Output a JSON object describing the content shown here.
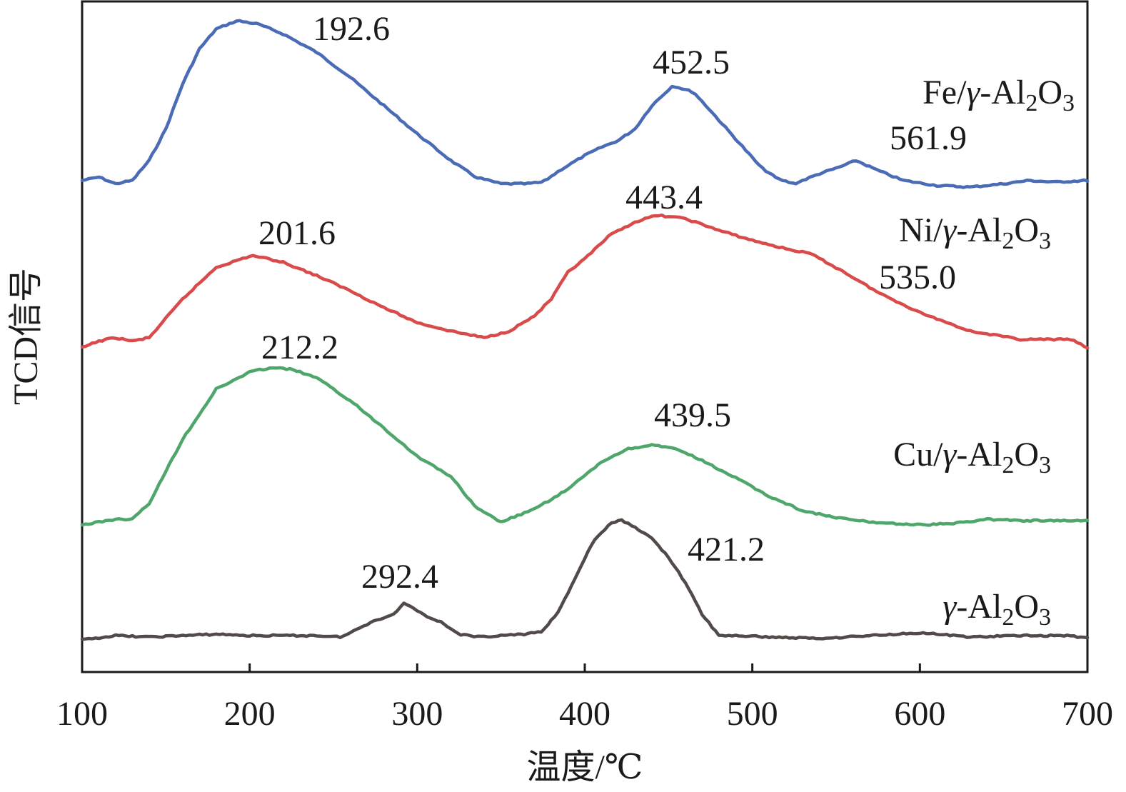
{
  "chart_data": {
    "type": "line",
    "xlabel": "温度/℃",
    "ylabel": "TCD信号",
    "xlim": [
      100,
      700
    ],
    "xticks": [
      100,
      200,
      300,
      400,
      500,
      600,
      700
    ],
    "yticks_shown": false,
    "grid": false,
    "legend": "inline labels at right of each curve",
    "series": [
      {
        "name": "Fe/γ-Al2O3",
        "label_parts": [
          "Fe/",
          "γ",
          "-Al",
          "2",
          "O",
          "3"
        ],
        "color": "#4a6bb5",
        "offset": 3,
        "x": [
          100,
          110,
          120,
          130,
          140,
          150,
          160,
          170,
          180,
          192.6,
          205,
          220,
          240,
          260,
          280,
          300,
          320,
          335,
          350,
          365,
          375,
          385,
          400,
          410,
          420,
          430,
          440,
          452.5,
          465,
          475,
          490,
          505,
          515,
          525,
          540,
          552,
          561.9,
          575,
          590,
          610,
          630,
          650,
          665,
          680,
          700
        ],
        "y": [
          0.04,
          0.06,
          0.02,
          0.04,
          0.16,
          0.35,
          0.62,
          0.83,
          0.95,
          1.0,
          0.98,
          0.92,
          0.81,
          0.66,
          0.49,
          0.32,
          0.16,
          0.06,
          0.02,
          0.02,
          0.03,
          0.1,
          0.19,
          0.24,
          0.28,
          0.35,
          0.49,
          0.61,
          0.57,
          0.46,
          0.29,
          0.12,
          0.05,
          0.02,
          0.08,
          0.12,
          0.16,
          0.1,
          0.04,
          0.01,
          0.0,
          0.02,
          0.04,
          0.03,
          0.04
        ]
      },
      {
        "name": "Ni/γ-Al2O3",
        "label_parts": [
          "Ni/",
          "γ",
          "-Al",
          "2",
          "O",
          "3"
        ],
        "color": "#d94a4a",
        "offset": 2,
        "x": [
          100,
          110,
          120,
          130,
          140,
          160,
          180,
          201.6,
          220,
          240,
          260,
          280,
          300,
          320,
          340,
          355,
          370,
          380,
          390,
          400,
          415,
          430,
          443.4,
          460,
          480,
          500,
          520,
          535.0,
          555,
          575,
          600,
          630,
          660,
          690,
          700
        ],
        "y": [
          0.0,
          0.04,
          0.06,
          0.04,
          0.06,
          0.29,
          0.48,
          0.55,
          0.51,
          0.43,
          0.34,
          0.24,
          0.15,
          0.1,
          0.06,
          0.1,
          0.19,
          0.29,
          0.45,
          0.53,
          0.67,
          0.75,
          0.79,
          0.77,
          0.7,
          0.64,
          0.59,
          0.56,
          0.45,
          0.33,
          0.21,
          0.1,
          0.05,
          0.05,
          0.0
        ]
      },
      {
        "name": "Cu/γ-Al2O3",
        "label_parts": [
          "Cu/",
          "γ",
          "-Al",
          "2",
          "O",
          "3"
        ],
        "color": "#4ea66a",
        "offset": 1,
        "x": [
          100,
          110,
          120,
          130,
          140,
          160,
          180,
          200,
          212.2,
          225,
          240,
          260,
          280,
          300,
          320,
          335,
          350,
          370,
          390,
          410,
          425,
          439.5,
          455,
          470,
          490,
          510,
          530,
          550,
          570,
          600,
          620,
          640,
          660,
          680,
          700
        ],
        "y": [
          0.0,
          0.02,
          0.04,
          0.04,
          0.15,
          0.6,
          0.95,
          1.07,
          1.1,
          1.09,
          1.03,
          0.87,
          0.68,
          0.48,
          0.34,
          0.12,
          0.02,
          0.11,
          0.25,
          0.44,
          0.53,
          0.56,
          0.53,
          0.45,
          0.33,
          0.2,
          0.1,
          0.05,
          0.02,
          0.0,
          0.01,
          0.04,
          0.03,
          0.03,
          0.03
        ]
      },
      {
        "name": "γ-Al2O3",
        "label_parts": [
          "",
          "γ",
          "-Al",
          "2",
          "O",
          "3"
        ],
        "color": "#524a48",
        "offset": 0,
        "x": [
          100,
          120,
          140,
          160,
          180,
          200,
          220,
          240,
          255,
          265,
          275,
          285,
          292.4,
          305,
          315,
          325,
          335,
          350,
          365,
          375,
          385,
          395,
          405,
          415,
          421.2,
          430,
          440,
          450,
          460,
          470,
          480,
          490,
          510,
          540,
          570,
          600,
          630,
          660,
          690,
          700
        ],
        "y": [
          0.0,
          0.03,
          0.02,
          0.03,
          0.04,
          0.03,
          0.03,
          0.03,
          0.02,
          0.08,
          0.14,
          0.17,
          0.26,
          0.17,
          0.12,
          0.04,
          0.02,
          0.03,
          0.04,
          0.06,
          0.21,
          0.45,
          0.69,
          0.81,
          0.84,
          0.79,
          0.71,
          0.58,
          0.4,
          0.18,
          0.03,
          0.03,
          0.02,
          0.01,
          0.03,
          0.05,
          0.02,
          0.03,
          0.03,
          0.01
        ]
      }
    ],
    "annotations": [
      {
        "text": "192.6",
        "series": 0,
        "x": 192.6,
        "anchor": "right"
      },
      {
        "text": "452.5",
        "series": 0,
        "x": 452.5,
        "anchor": "above"
      },
      {
        "text": "561.9",
        "series": 0,
        "x": 561.9,
        "anchor": "above"
      },
      {
        "text": "201.6",
        "series": 1,
        "x": 201.6,
        "anchor": "above"
      },
      {
        "text": "443.4",
        "series": 1,
        "x": 443.4,
        "anchor": "above"
      },
      {
        "text": "535.0",
        "series": 1,
        "x": 535.0,
        "anchor": "below"
      },
      {
        "text": "212.2",
        "series": 2,
        "x": 212.2,
        "anchor": "above"
      },
      {
        "text": "439.5",
        "series": 2,
        "x": 439.5,
        "anchor": "above"
      },
      {
        "text": "292.4",
        "series": 3,
        "x": 292.4,
        "anchor": "above"
      },
      {
        "text": "421.2",
        "series": 3,
        "x": 421.2,
        "anchor": "right"
      }
    ]
  }
}
